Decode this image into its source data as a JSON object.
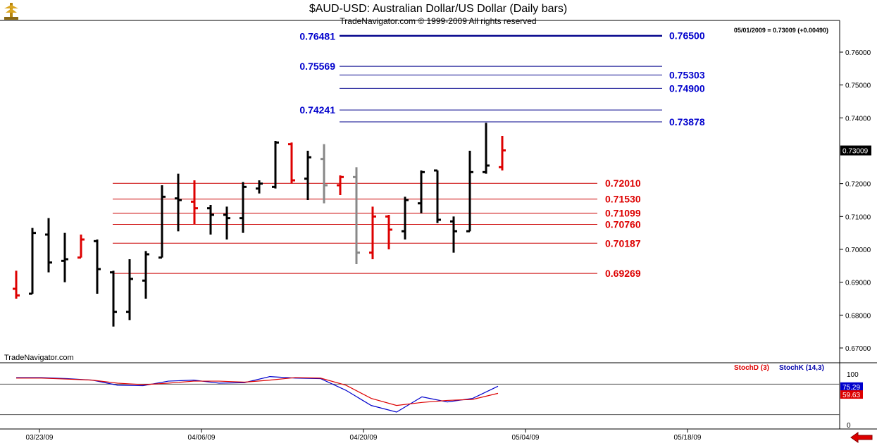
{
  "header": {
    "title": "$AUD-USD:  Australian Dollar/US Dollar  (Daily bars)",
    "subtitle": "TradeNavigator.com © 1999-2009 All rights reserved",
    "quote": "05/01/2009 = 0.73009 (+0.00490)",
    "watermark": "TradeNavigator.com"
  },
  "colors": {
    "up": "#000000",
    "down": "#dd0000",
    "neutral": "#888888",
    "blue_level": "#00008b",
    "red_level": "#cc0000",
    "stoch_d": "#dd0000",
    "stoch_k": "#0000cc"
  },
  "icons": [
    "logo-icon",
    "back-arrow-icon"
  ],
  "chart_data": [
    {
      "type": "ohlc",
      "title": "$AUD-USD:  Australian Dollar/US Dollar  (Daily bars)",
      "x_tick_labels": [
        "03/23/09",
        "04/06/09",
        "04/20/09",
        "05/04/09",
        "05/18/09"
      ],
      "y_tick_labels": [
        "0.76000",
        "0.75000",
        "0.74000",
        "0.72000",
        "0.71000",
        "0.70000",
        "0.69000",
        "0.68000",
        "0.67000"
      ],
      "ylim": [
        0.665,
        0.7735
      ],
      "last_price_tag": "0.73009",
      "bars": [
        {
          "d": 0,
          "o": 0.688,
          "h": 0.6935,
          "l": 0.685,
          "c": 0.686,
          "col": "down"
        },
        {
          "d": 1,
          "o": 0.6865,
          "h": 0.7065,
          "l": 0.6865,
          "c": 0.705,
          "col": "up"
        },
        {
          "d": 2,
          "o": 0.7045,
          "h": 0.7095,
          "l": 0.693,
          "c": 0.696,
          "col": "up"
        },
        {
          "d": 3,
          "o": 0.6965,
          "h": 0.705,
          "l": 0.69,
          "c": 0.697,
          "col": "up"
        },
        {
          "d": 4,
          "o": 0.6975,
          "h": 0.7045,
          "l": 0.6975,
          "c": 0.703,
          "col": "down"
        },
        {
          "d": 5,
          "o": 0.7025,
          "h": 0.703,
          "l": 0.6865,
          "c": 0.694,
          "col": "up"
        },
        {
          "d": 6,
          "o": 0.693,
          "h": 0.6935,
          "l": 0.6765,
          "c": 0.681,
          "col": "up"
        },
        {
          "d": 7,
          "o": 0.681,
          "h": 0.697,
          "l": 0.6785,
          "c": 0.691,
          "col": "up"
        },
        {
          "d": 8,
          "o": 0.6905,
          "h": 0.6995,
          "l": 0.685,
          "c": 0.6985,
          "col": "up"
        },
        {
          "d": 9,
          "o": 0.6975,
          "h": 0.7195,
          "l": 0.6975,
          "c": 0.716,
          "col": "up"
        },
        {
          "d": 10,
          "o": 0.7155,
          "h": 0.723,
          "l": 0.7055,
          "c": 0.715,
          "col": "up"
        },
        {
          "d": 11,
          "o": 0.7145,
          "h": 0.721,
          "l": 0.7075,
          "c": 0.7125,
          "col": "down"
        },
        {
          "d": 12,
          "o": 0.7125,
          "h": 0.7135,
          "l": 0.7045,
          "c": 0.7105,
          "col": "up"
        },
        {
          "d": 13,
          "o": 0.7105,
          "h": 0.713,
          "l": 0.703,
          "c": 0.7095,
          "col": "up"
        },
        {
          "d": 14,
          "o": 0.7095,
          "h": 0.7205,
          "l": 0.705,
          "c": 0.719,
          "col": "up"
        },
        {
          "d": 15,
          "o": 0.7185,
          "h": 0.721,
          "l": 0.717,
          "c": 0.72,
          "col": "up"
        },
        {
          "d": 16,
          "o": 0.719,
          "h": 0.733,
          "l": 0.7185,
          "c": 0.7325,
          "col": "up"
        },
        {
          "d": 17,
          "o": 0.732,
          "h": 0.7325,
          "l": 0.72,
          "c": 0.721,
          "col": "down"
        },
        {
          "d": 18,
          "o": 0.7215,
          "h": 0.73,
          "l": 0.715,
          "c": 0.728,
          "col": "up"
        },
        {
          "d": 19,
          "o": 0.7275,
          "h": 0.732,
          "l": 0.714,
          "c": 0.7195,
          "col": "neutral"
        },
        {
          "d": 20,
          "o": 0.7195,
          "h": 0.7225,
          "l": 0.7165,
          "c": 0.722,
          "col": "down"
        },
        {
          "d": 21,
          "o": 0.722,
          "h": 0.725,
          "l": 0.6955,
          "c": 0.699,
          "col": "neutral"
        },
        {
          "d": 22,
          "o": 0.699,
          "h": 0.713,
          "l": 0.697,
          "c": 0.71,
          "col": "down"
        },
        {
          "d": 23,
          "o": 0.71,
          "h": 0.7105,
          "l": 0.7,
          "c": 0.706,
          "col": "down"
        },
        {
          "d": 24,
          "o": 0.7055,
          "h": 0.716,
          "l": 0.703,
          "c": 0.715,
          "col": "up"
        },
        {
          "d": 25,
          "o": 0.714,
          "h": 0.724,
          "l": 0.711,
          "c": 0.7235,
          "col": "up"
        },
        {
          "d": 26,
          "o": 0.724,
          "h": 0.724,
          "l": 0.708,
          "c": 0.709,
          "col": "up"
        },
        {
          "d": 27,
          "o": 0.7085,
          "h": 0.71,
          "l": 0.699,
          "c": 0.7055,
          "col": "up"
        },
        {
          "d": 28,
          "o": 0.7055,
          "h": 0.73,
          "l": 0.7055,
          "c": 0.7235,
          "col": "up"
        },
        {
          "d": 29,
          "o": 0.7235,
          "h": 0.7385,
          "l": 0.723,
          "c": 0.7255,
          "col": "up"
        },
        {
          "d": 30,
          "o": 0.725,
          "h": 0.7345,
          "l": 0.724,
          "c": 0.7301,
          "col": "down"
        }
      ],
      "blue_levels": [
        {
          "value": 0.76481,
          "label": "0.76481",
          "side": "left"
        },
        {
          "value": 0.765,
          "label": "0.76500",
          "side": "right"
        },
        {
          "value": 0.75569,
          "label": "0.75569",
          "side": "left"
        },
        {
          "value": 0.75303,
          "label": "0.75303",
          "side": "right"
        },
        {
          "value": 0.749,
          "label": "0.74900",
          "side": "right"
        },
        {
          "value": 0.74241,
          "label": "0.74241",
          "side": "left"
        },
        {
          "value": 0.73878,
          "label": "0.73878",
          "side": "right"
        }
      ],
      "red_levels": [
        {
          "value": 0.7201,
          "label": "0.72010"
        },
        {
          "value": 0.7153,
          "label": "0.71530"
        },
        {
          "value": 0.71099,
          "label": "0.71099"
        },
        {
          "value": 0.7076,
          "label": "0.70760"
        },
        {
          "value": 0.70187,
          "label": "0.70187"
        },
        {
          "value": 0.69269,
          "label": "0.69269"
        }
      ]
    },
    {
      "type": "line",
      "legend": [
        {
          "name": "StochD (3)",
          "color": "#dd0000"
        },
        {
          "name": "StochK (14,3)",
          "color": "#0000cc"
        }
      ],
      "y_tick_labels": [
        "100",
        "0"
      ],
      "ylim": [
        0,
        100
      ],
      "reference_lines": [
        80,
        20
      ],
      "tags": [
        {
          "label": "75.29",
          "color": "#0000cc",
          "value": 75.29
        },
        {
          "label": "59.63",
          "color": "#dd0000",
          "value": 59.63
        }
      ],
      "series": [
        {
          "key": "k",
          "x": [
            0,
            2,
            4,
            6,
            8,
            10,
            12,
            14,
            16,
            18,
            20,
            22,
            24,
            26,
            28,
            30,
            32,
            34,
            36,
            38
          ],
          "values": [
            93,
            93,
            91,
            88,
            78,
            77,
            86,
            88,
            82,
            83,
            95,
            92,
            91,
            68,
            38,
            25,
            55,
            45,
            52,
            76
          ]
        },
        {
          "key": "d",
          "x": [
            0,
            2,
            4,
            6,
            8,
            10,
            12,
            14,
            16,
            18,
            20,
            22,
            24,
            26,
            28,
            30,
            32,
            34,
            36,
            38
          ],
          "values": [
            92,
            92,
            90,
            88,
            82,
            79,
            82,
            86,
            86,
            84,
            88,
            93,
            92,
            78,
            52,
            38,
            44,
            48,
            50,
            62
          ]
        }
      ]
    }
  ]
}
